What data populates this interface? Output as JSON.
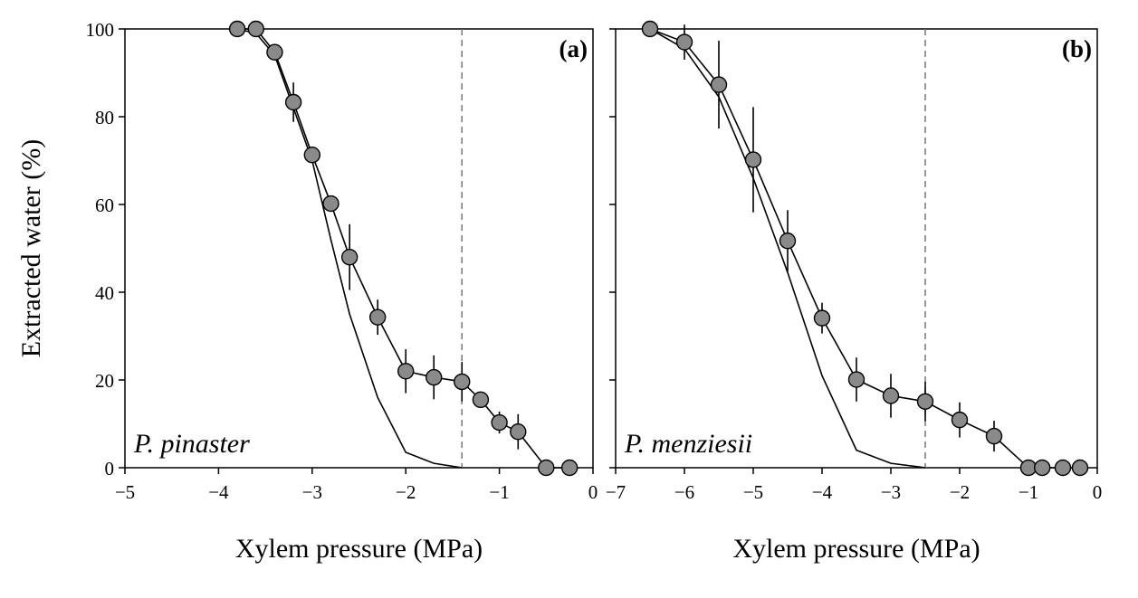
{
  "chart_data": [
    {
      "type": "line",
      "panel_label": "(a)",
      "species": "P. pinaster",
      "xlabel": "Xylem pressure (MPa)",
      "ylabel": "Extracted water (%)",
      "xlim": [
        -5,
        0
      ],
      "ylim": [
        0,
        100
      ],
      "xticks": [
        -5,
        -4,
        -3,
        -2,
        -1,
        0
      ],
      "xtick_labels": [
        "−5",
        "−4",
        "−3",
        "−2",
        "−1",
        "0"
      ],
      "yticks": [
        0,
        20,
        40,
        60,
        80,
        100
      ],
      "ytick_labels": [
        "0",
        "20",
        "40",
        "60",
        "80",
        "100"
      ],
      "vline_x": -1.4,
      "series": [
        {
          "style": "markers-with-error-bars",
          "x": [
            -3.8,
            -3.6,
            -3.4,
            -3.2,
            -3.0,
            -2.8,
            -2.6,
            -2.3,
            -2.0,
            -1.7,
            -1.4,
            -1.2,
            -1.0,
            -0.8,
            -0.5,
            -0.25
          ],
          "y": [
            100,
            100,
            94.7,
            83.3,
            71.3,
            60.2,
            48.0,
            34.3,
            22.0,
            20.6,
            19.6,
            15.5,
            10.3,
            8.2,
            0,
            0
          ],
          "err": [
            0,
            0,
            0,
            4.5,
            0,
            0,
            7.5,
            4.0,
            5.0,
            5.0,
            4.5,
            0,
            2.5,
            4.0,
            0,
            0
          ]
        },
        {
          "style": "line",
          "x": [
            -3.8,
            -3.6,
            -3.4,
            -3.2,
            -3.0,
            -2.8,
            -2.6,
            -2.3,
            -2.0,
            -1.7,
            -1.4
          ],
          "y": [
            100,
            99,
            94,
            82,
            70,
            52,
            35,
            16,
            3.5,
            1.0,
            0
          ]
        }
      ]
    },
    {
      "type": "line",
      "panel_label": "(b)",
      "species": "P. menziesii",
      "xlabel": "Xylem pressure (MPa)",
      "ylabel": "",
      "xlim": [
        -7,
        0
      ],
      "ylim": [
        0,
        100
      ],
      "xticks": [
        -7,
        -6,
        -5,
        -4,
        -3,
        -2,
        -1,
        0
      ],
      "xtick_labels": [
        "−7",
        "−6",
        "−5",
        "−4",
        "−3",
        "−2",
        "−1",
        "0"
      ],
      "yticks": [
        0,
        20,
        40,
        60,
        80,
        100
      ],
      "ytick_labels": [
        "",
        "",
        "",
        "",
        "",
        ""
      ],
      "vline_x": -2.5,
      "series": [
        {
          "style": "markers-with-error-bars",
          "x": [
            -6.5,
            -6.0,
            -5.5,
            -5.0,
            -4.5,
            -4.0,
            -3.5,
            -3.0,
            -2.5,
            -2.0,
            -1.5,
            -1.0,
            -0.8,
            -0.5,
            -0.25
          ],
          "y": [
            100,
            97,
            87.3,
            70.2,
            51.7,
            34.1,
            20.1,
            16.4,
            15.1,
            10.9,
            7.2,
            0,
            0,
            0,
            0
          ],
          "err": [
            0,
            4.0,
            10.0,
            12.0,
            7.0,
            3.5,
            5.0,
            5.0,
            4.5,
            4.0,
            3.5,
            0,
            0,
            0,
            0
          ]
        },
        {
          "style": "line",
          "x": [
            -6.5,
            -6.0,
            -5.5,
            -5.0,
            -4.5,
            -4.0,
            -3.5,
            -3.0,
            -2.5
          ],
          "y": [
            100,
            95.5,
            84.5,
            66,
            44.5,
            21,
            4.0,
            1.0,
            0
          ]
        }
      ]
    }
  ]
}
